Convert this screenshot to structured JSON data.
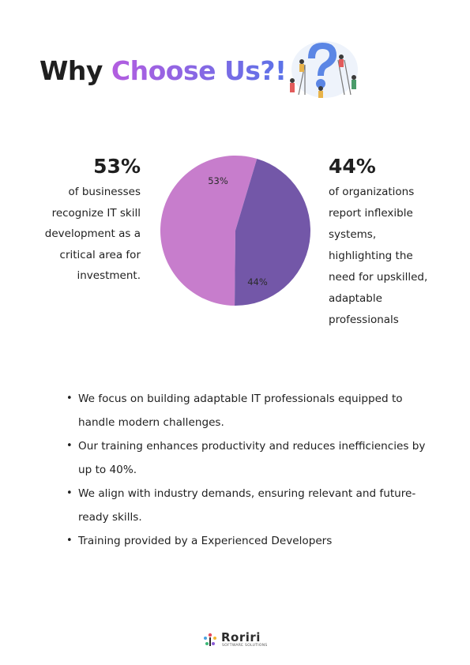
{
  "title": {
    "part1": "Why ",
    "accent": "Choose Us?!"
  },
  "stats": [
    {
      "value": "53%",
      "text": [
        "of businesses",
        "recognize IT skill",
        "development as a",
        "critical area for",
        "investment."
      ]
    },
    {
      "value": "44%",
      "text": [
        "of organizations",
        "report inflexible",
        "systems,",
        "highlighting the",
        "need for upskilled,",
        "adaptable",
        "professionals"
      ]
    }
  ],
  "chart_data": {
    "type": "pie",
    "slices": [
      {
        "label": "53%",
        "value": 53,
        "color": "#c77dcc"
      },
      {
        "label": "44%",
        "value": 44,
        "color": "#7357a8"
      }
    ]
  },
  "bullets": [
    {
      "line1": "We focus on building adaptable IT professionals equipped to",
      "line2": "handle modern challenges."
    },
    {
      "line1": "Our training enhances productivity and reduces inefficiencies by",
      "line2": "up to 40%."
    },
    {
      "line1": "We align with industry demands, ensuring relevant and future-",
      "line2": "ready skills."
    },
    {
      "line1": "Training provided by a Experienced Developers",
      "line2": ""
    }
  ],
  "bullet_symbol": "•",
  "logo": {
    "name": "Roriri",
    "tagline": "SOFTWARE SOLUTIONS"
  },
  "colors": {
    "accent_start": "#b35de0",
    "accent_end": "#5a73e8",
    "pie_large": "#c77dcc",
    "pie_small": "#7357a8"
  }
}
